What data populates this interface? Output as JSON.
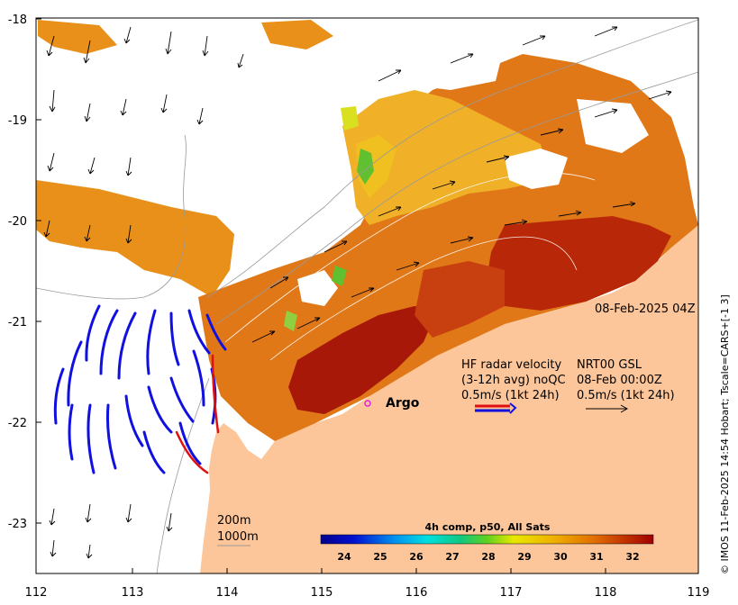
{
  "axes": {
    "x_ticks": [
      "112",
      "113",
      "114",
      "115",
      "116",
      "117",
      "118",
      "119"
    ],
    "y_ticks": [
      "-18",
      "-19",
      "-20",
      "-21",
      "-22",
      "-23"
    ]
  },
  "timestamp": "08-Feb-2025 04Z",
  "legend": {
    "hf_line1_left": "HF radar velocity",
    "hf_line2_left": "(3-12h avg) noQC",
    "hf_line3_left": "0.5m/s (1kt 24h)",
    "nrt_line1": "NRT00 GSL",
    "nrt_line2": "08-Feb 00:00Z",
    "nrt_line3": "0.5m/s (1kt 24h)"
  },
  "argo_label": "Argo",
  "isobaths": {
    "shallow": "200m",
    "deep": "1000m"
  },
  "colorbar": {
    "title": "4h comp, p50, All Sats",
    "ticks": [
      "24",
      "25",
      "26",
      "27",
      "28",
      "29",
      "30",
      "31",
      "32"
    ]
  },
  "credit": "© IMOS 11-Feb-2025 14:54 Hobart; Tscale=CARS+[-1 3]",
  "colors": {
    "land": "#fcc69a",
    "radar_arrows": "#1010e0",
    "drifter_track": "#e01010",
    "argo_marker": "#e020e0"
  }
}
